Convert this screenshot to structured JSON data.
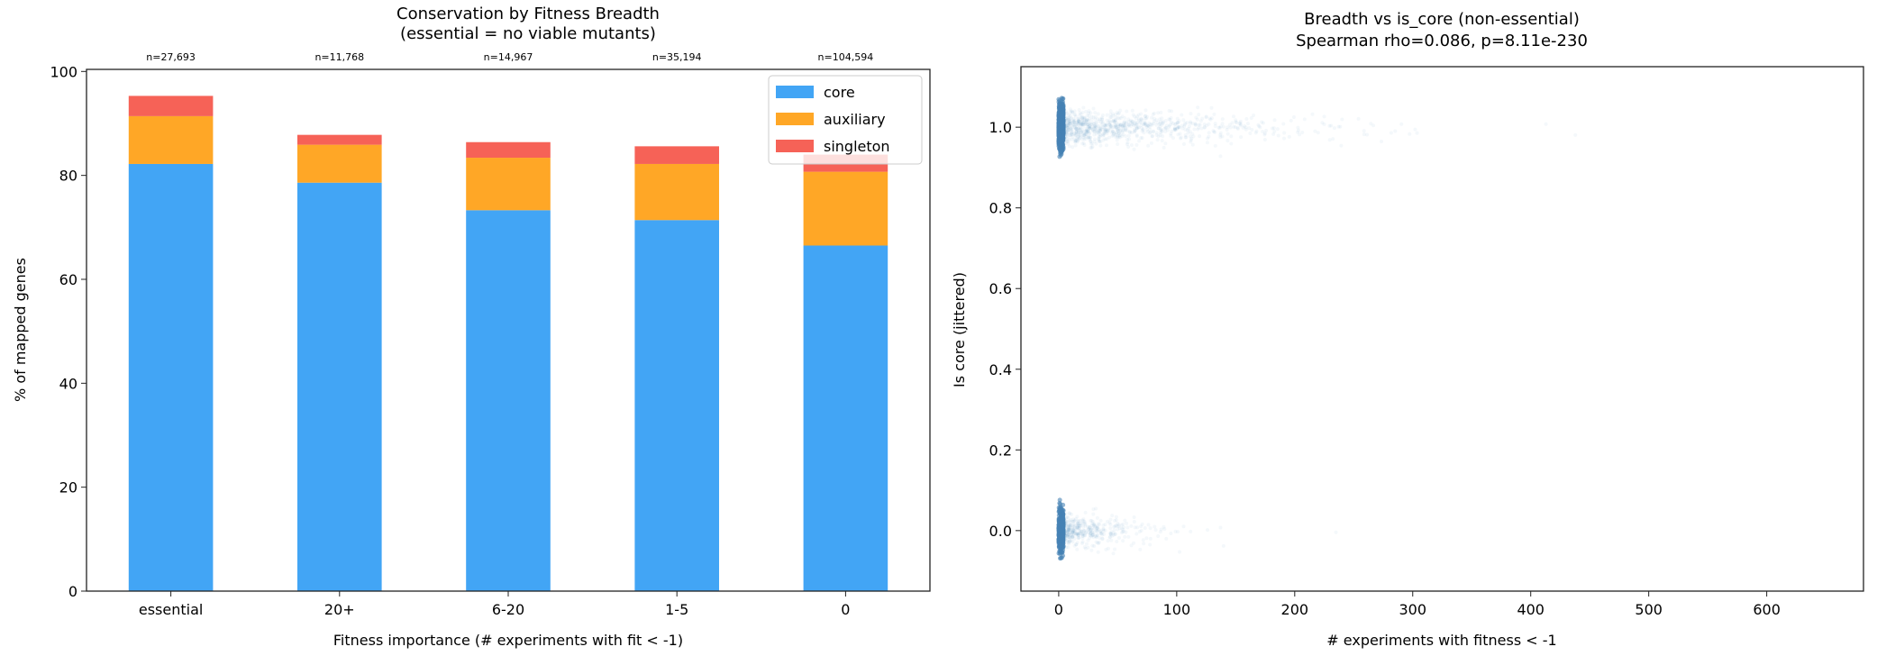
{
  "chart_data": [
    {
      "type": "bar",
      "stacked": true,
      "title": "Conservation by Fitness Breadth\n(essential = no viable mutants)",
      "title_lines": [
        "Conservation by Fitness Breadth",
        "(essential = no viable mutants)"
      ],
      "xlabel": "Fitness importance (# experiments with fit < -1)",
      "ylabel": "% of mapped genes",
      "categories": [
        "essential",
        "20+",
        "6-20",
        "1-5",
        "0"
      ],
      "count_labels": [
        "n=27,693",
        "n=11,768",
        "n=14,967",
        "n=35,194",
        "n=104,594"
      ],
      "series": [
        {
          "name": "core",
          "color": "#42a5f5",
          "values": [
            82.2,
            78.6,
            73.3,
            71.4,
            66.5
          ]
        },
        {
          "name": "auxiliary",
          "color": "#ffa726",
          "values": [
            9.2,
            7.3,
            10.1,
            10.8,
            14.2
          ]
        },
        {
          "name": "singleton",
          "color": "#f66257",
          "values": [
            3.9,
            1.9,
            3.0,
            3.4,
            3.3
          ]
        }
      ],
      "ylim": [
        0,
        100.4
      ],
      "yticks": [
        0,
        20,
        40,
        60,
        80,
        100
      ],
      "legend": "top-right",
      "grid": false
    },
    {
      "type": "scatter",
      "title": "Breadth vs is_core (non-essential)\nSpearman rho=0.086, p=8.11e-230",
      "title_lines": [
        "Breadth vs is_core (non-essential)",
        "Spearman rho=0.086, p=8.11e-230"
      ],
      "xlabel": "# experiments with fitness < -1",
      "ylabel": "Is core (jittered)",
      "xlim": [
        -32,
        682
      ],
      "ylim": [
        -0.15,
        1.15
      ],
      "xticks": [
        0,
        100,
        200,
        300,
        400,
        500,
        600
      ],
      "yticks": [
        "0.0",
        "0.2",
        "0.4",
        "0.6",
        "0.8",
        "1.0"
      ],
      "point_color": "#4682b4",
      "groups": [
        {
          "y": 1,
          "x_range": [
            0,
            600
          ],
          "note": "dense near x=0, sparse tail"
        },
        {
          "y": 0,
          "x_range": [
            0,
            270
          ],
          "note": "dense near x=0, sparse tail"
        }
      ],
      "grid": false
    }
  ]
}
